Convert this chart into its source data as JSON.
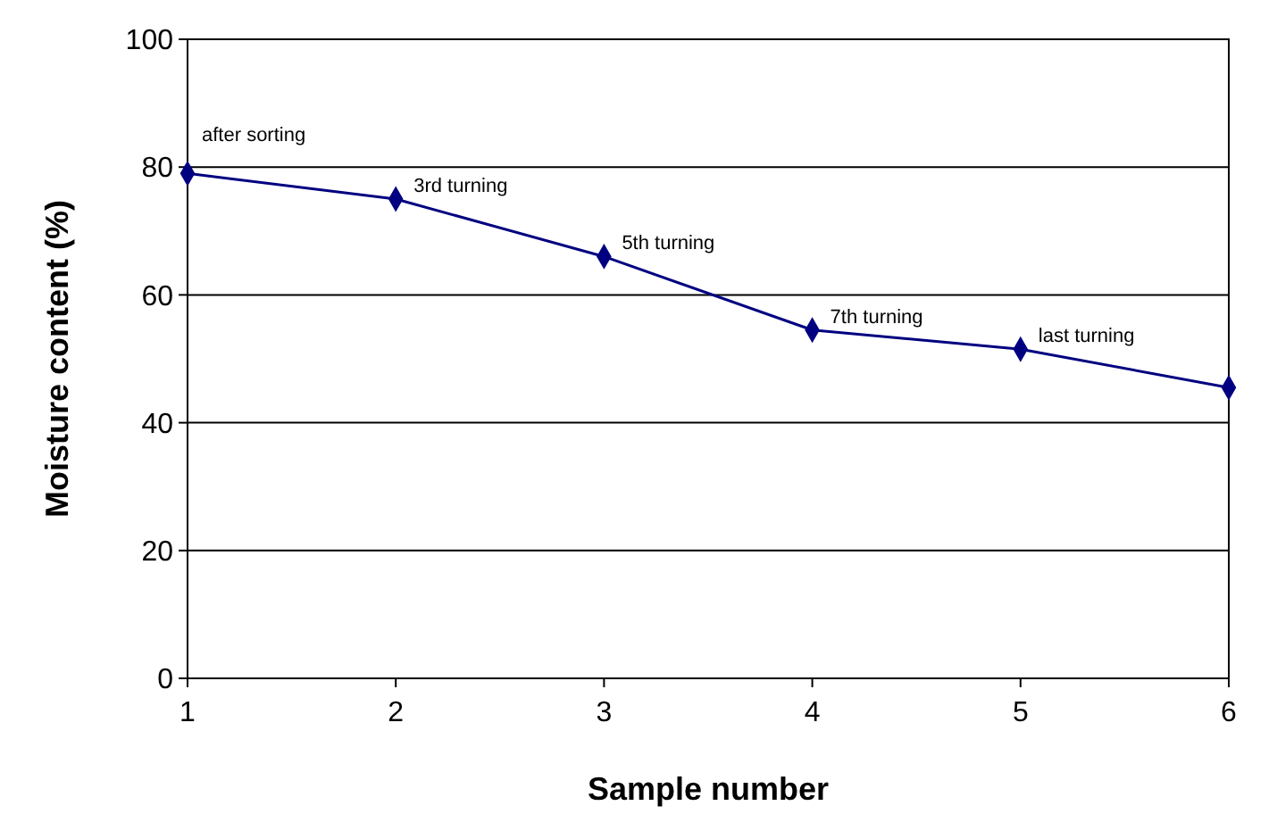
{
  "chart_data": {
    "type": "line",
    "xlabel": "Sample number",
    "ylabel": "Moisture content (%)",
    "x": [
      1,
      2,
      3,
      4,
      5,
      6
    ],
    "xlim": [
      1,
      6
    ],
    "xticks": [
      1,
      2,
      3,
      4,
      5,
      6
    ],
    "ylim": [
      0,
      100
    ],
    "yticks": [
      0,
      20,
      40,
      60,
      80,
      100
    ],
    "grid": "y",
    "marker": "diamond",
    "line_style": "solid",
    "series": [
      {
        "color": "#000080",
        "values": [
          79,
          75,
          66,
          54.5,
          51.5,
          45.5
        ]
      }
    ],
    "annotations": [
      {
        "text": "after sorting",
        "x": 1,
        "y": 79
      },
      {
        "text": "3rd turning",
        "x": 2,
        "y": 75
      },
      {
        "text": "5th turning",
        "x": 3,
        "y": 66
      },
      {
        "text": "7th turning",
        "x": 4,
        "y": 54.5
      },
      {
        "text": "last turning",
        "x": 5,
        "y": 51.5
      }
    ]
  }
}
